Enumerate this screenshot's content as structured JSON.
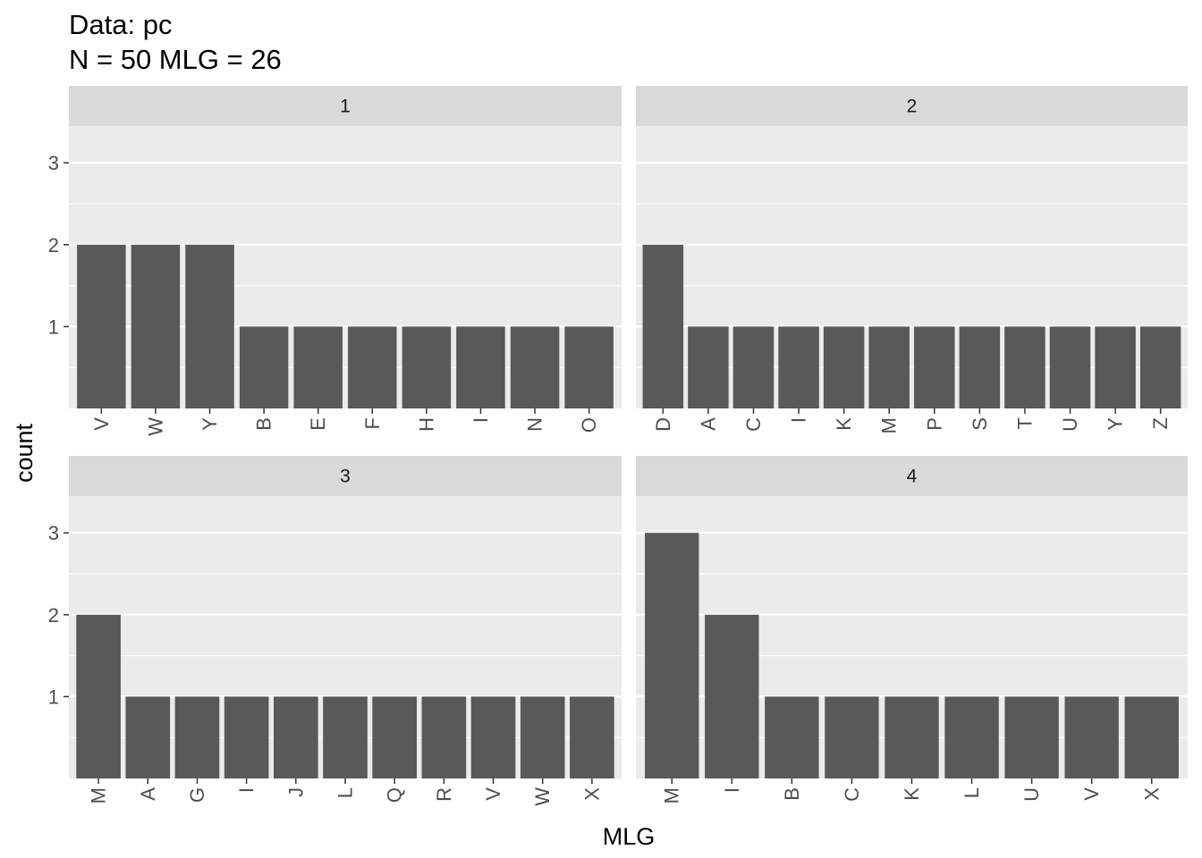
{
  "chart_data": {
    "type": "bar",
    "title": "Data: pc",
    "subtitle": "N = 50 MLG = 26",
    "xlabel": "MLG",
    "ylabel": "count",
    "ylim": [
      0,
      3.45
    ],
    "yticks": [
      1,
      2,
      3
    ],
    "grid": true,
    "facets": [
      {
        "label": "1",
        "categories": [
          "V",
          "W",
          "Y",
          "B",
          "E",
          "F",
          "H",
          "I",
          "N",
          "O"
        ],
        "values": [
          2,
          2,
          2,
          1,
          1,
          1,
          1,
          1,
          1,
          1
        ]
      },
      {
        "label": "2",
        "categories": [
          "D",
          "A",
          "C",
          "I",
          "K",
          "M",
          "P",
          "S",
          "T",
          "U",
          "Y",
          "Z"
        ],
        "values": [
          2,
          1,
          1,
          1,
          1,
          1,
          1,
          1,
          1,
          1,
          1,
          1
        ]
      },
      {
        "label": "3",
        "categories": [
          "M",
          "A",
          "G",
          "I",
          "J",
          "L",
          "Q",
          "R",
          "V",
          "W",
          "X"
        ],
        "values": [
          2,
          1,
          1,
          1,
          1,
          1,
          1,
          1,
          1,
          1,
          1
        ]
      },
      {
        "label": "4",
        "categories": [
          "M",
          "I",
          "B",
          "C",
          "K",
          "L",
          "U",
          "V",
          "X"
        ],
        "values": [
          3,
          2,
          1,
          1,
          1,
          1,
          1,
          1,
          1
        ]
      }
    ]
  },
  "colors": {
    "panel_bg": "#ebebeb",
    "strip_bg": "#d9d9d9",
    "bar_fill": "#595959",
    "grid": "#ffffff"
  }
}
